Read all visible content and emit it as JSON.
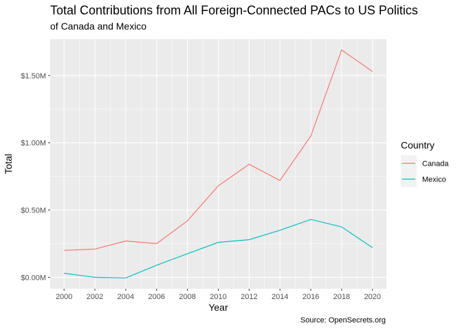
{
  "chart_data": {
    "type": "line",
    "title": "Total Contributions from All Foreign-Connected PACs to US Politics",
    "subtitle": "of Canada and Mexico",
    "caption": "Source: OpenSecrets.org",
    "xlabel": "Year",
    "ylabel": "Total",
    "x": [
      2000,
      2002,
      2004,
      2006,
      2008,
      2010,
      2012,
      2014,
      2016,
      2018,
      2020
    ],
    "xticks": [
      "2000",
      "2002",
      "2004",
      "2006",
      "2008",
      "2010",
      "2012",
      "2014",
      "2016",
      "2018",
      "2020"
    ],
    "yticks": [
      {
        "value": 0,
        "label": "$0.00M"
      },
      {
        "value": 0.5,
        "label": "$0.50M"
      },
      {
        "value": 1.0,
        "label": "$1.00M"
      },
      {
        "value": 1.5,
        "label": "$1.50M"
      }
    ],
    "xlim": [
      1999.1,
      2020.9
    ],
    "ylim": [
      -0.085,
      1.77
    ],
    "grid": true,
    "legend": {
      "title": "Country",
      "placement": "right"
    },
    "series": [
      {
        "name": "Canada",
        "color": "#F8766D",
        "values": [
          0.2,
          0.21,
          0.27,
          0.25,
          0.42,
          0.68,
          0.84,
          0.72,
          1.05,
          1.69,
          1.53
        ]
      },
      {
        "name": "Mexico",
        "color": "#00BFC4",
        "values": [
          0.03,
          0.0,
          -0.005,
          0.09,
          0.175,
          0.26,
          0.28,
          0.35,
          0.43,
          0.375,
          0.22
        ]
      }
    ]
  }
}
